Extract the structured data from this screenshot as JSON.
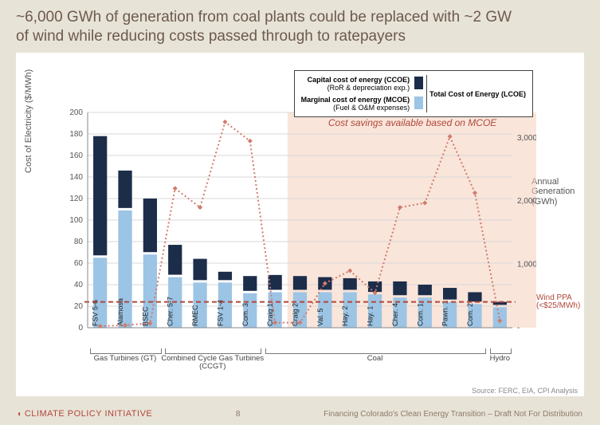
{
  "title_line1": "~6,000 GWh of generation from coal plants could be replaced with ~2 GW",
  "title_line2": "of wind while reducing costs passed through to ratepayers",
  "chart": {
    "type": "stacked-bar + line (dual axis)",
    "background_color": "#ffffff",
    "page_background_color": "#e8e3d7",
    "y_left": {
      "label": "Cost of Electricity ($/MWh)",
      "min": 0,
      "max": 200,
      "tick_step": 20,
      "ticks": [
        0,
        20,
        40,
        60,
        80,
        100,
        120,
        140,
        160,
        180,
        200
      ]
    },
    "y_right": {
      "label": "Annual Generation (GWh)",
      "min": 0,
      "max": 3400,
      "ticks": [
        0,
        1000,
        2000,
        3000
      ]
    },
    "bar_colors": {
      "mcoe": "#9cc4e4",
      "ccoe": "#1c2d4a"
    },
    "line": {
      "color": "#d27a6d",
      "marker": "diamond",
      "marker_size": 6,
      "style": "dotted",
      "width": 2
    },
    "wind_ref": {
      "value": 24,
      "label": "Wind PPA (<$25/MWh)",
      "color": "#b1473b",
      "style": "dashed",
      "width": 2
    },
    "highlight": {
      "label": "Cost savings available based on MCOE",
      "color": "#f4d0bb",
      "opacity": 0.55,
      "start_index": 8,
      "end_index": 17
    },
    "grid_color": "#d9d9d9",
    "axis_font_size": 10,
    "bars": [
      {
        "name": "FSV 5-6",
        "mcoe": 65,
        "ccoe": 113,
        "gen": 25
      },
      {
        "name": "Alamosa",
        "mcoe": 109,
        "ccoe": 37,
        "gen": 40
      },
      {
        "name": "BSEC",
        "mcoe": 68,
        "ccoe": 52,
        "gen": 70
      },
      {
        "name": "Cher. 5-7",
        "mcoe": 47,
        "ccoe": 30,
        "gen": 2200
      },
      {
        "name": "RMEC",
        "mcoe": 42,
        "ccoe": 22,
        "gen": 1900
      },
      {
        "name": "FSV 1-4",
        "mcoe": 42,
        "ccoe": 10,
        "gen": 3250
      },
      {
        "name": "Com. 3",
        "mcoe": 32,
        "ccoe": 16,
        "gen": 2950
      },
      {
        "name": "Craig 1",
        "mcoe": 33,
        "ccoe": 16,
        "gen": 80
      },
      {
        "name": "Craig 2",
        "mcoe": 33,
        "ccoe": 15,
        "gen": 80
      },
      {
        "name": "Val. 5",
        "mcoe": 33,
        "ccoe": 14,
        "gen": 700
      },
      {
        "name": "Hay. 2",
        "mcoe": 33,
        "ccoe": 13,
        "gen": 900
      },
      {
        "name": "Hay. 1",
        "mcoe": 31,
        "ccoe": 12,
        "gen": 550
      },
      {
        "name": "Cher. 4",
        "mcoe": 28,
        "ccoe": 15,
        "gen": 1900
      },
      {
        "name": "Com. 1",
        "mcoe": 28,
        "ccoe": 12,
        "gen": 1970
      },
      {
        "name": "Pawn. 1",
        "mcoe": 24,
        "ccoe": 13,
        "gen": 3020
      },
      {
        "name": "Com. 2",
        "mcoe": 22,
        "ccoe": 11,
        "gen": 2130
      },
      {
        "name": "",
        "mcoe": 19,
        "ccoe": 5,
        "gen": 110
      }
    ],
    "categories": [
      {
        "label": "Gas Turbines (GT)",
        "start": 0,
        "end": 2
      },
      {
        "label": "Combined Cycle Gas Turbines (CCGT)",
        "start": 3,
        "end": 6
      },
      {
        "label": "Coal",
        "start": 7,
        "end": 15
      },
      {
        "label": "Hydro",
        "start": 16,
        "end": 16
      }
    ],
    "legend": {
      "ccoe_label": "Capital cost of energy (CCOE)",
      "ccoe_sub": "(RoR & depreciation exp.)",
      "mcoe_label": "Marginal cost of energy (MCOE)",
      "mcoe_sub": "(Fuel & O&M expenses)",
      "total_label": "Total Cost of Energy (LCOE)"
    }
  },
  "footer": {
    "brand": "CLIMATE POLICY INITIATIVE",
    "page": "8",
    "note": "Financing Colorado's Clean Energy Transition – Draft Not For Distribution",
    "source": "Source: FERC, EIA, CPI Analysis"
  }
}
